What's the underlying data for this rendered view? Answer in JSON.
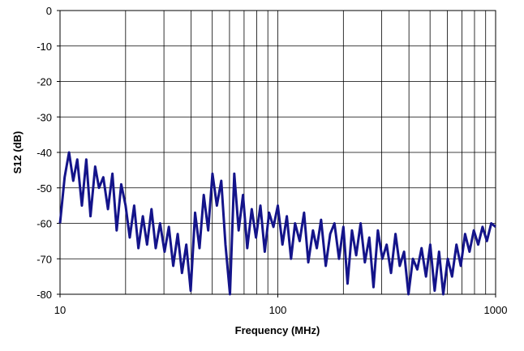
{
  "chart_data": {
    "type": "line",
    "x_label": "Frequency (MHz)",
    "y_label": "S12 (dB)",
    "log_x": true,
    "grid": true,
    "color": "#14148a",
    "xlim": [
      10,
      1000
    ],
    "xticks": [
      10,
      100,
      1000
    ],
    "ylim": [
      -80,
      0
    ],
    "yticks": [
      0,
      -10,
      -20,
      -30,
      -40,
      -50,
      -60,
      -70,
      -80
    ],
    "x": [
      10,
      10.5,
      11,
      11.5,
      12,
      12.6,
      13.2,
      13.8,
      14.5,
      15.1,
      15.8,
      16.6,
      17.4,
      18.2,
      19.1,
      20,
      20.9,
      21.9,
      22.9,
      24,
      25.1,
      26.3,
      27.5,
      28.8,
      30.2,
      31.6,
      33.1,
      34.7,
      36.3,
      38,
      39.8,
      41.7,
      43.7,
      45.7,
      47.9,
      50.1,
      52.5,
      55,
      57.5,
      60.3,
      63.1,
      66.1,
      69.2,
      72.4,
      75.9,
      79.4,
      83.2,
      87.1,
      91.2,
      95.5,
      100,
      105,
      110,
      115,
      120,
      126,
      132,
      138,
      145,
      151,
      158,
      166,
      174,
      182,
      191,
      200,
      209,
      219,
      229,
      240,
      251,
      263,
      275,
      288,
      302,
      316,
      331,
      347,
      363,
      380,
      398,
      417,
      437,
      457,
      479,
      501,
      525,
      550,
      575,
      603,
      631,
      661,
      692,
      724,
      759,
      794,
      832,
      871,
      912,
      955,
      1000
    ],
    "values": [
      -60,
      -47,
      -40,
      -48,
      -42,
      -55,
      -42,
      -58,
      -44,
      -50,
      -47,
      -56,
      -46,
      -62,
      -49,
      -55,
      -64,
      -55,
      -67,
      -58,
      -66,
      -56,
      -67,
      -60,
      -68,
      -61,
      -72,
      -63,
      -74,
      -66,
      -79,
      -57,
      -67,
      -52,
      -62,
      -46,
      -55,
      -48,
      -66,
      -80,
      -46,
      -62,
      -52,
      -67,
      -56,
      -64,
      -55,
      -68,
      -57,
      -61,
      -55,
      -66,
      -58,
      -70,
      -60,
      -65,
      -57,
      -71,
      -62,
      -67,
      -59,
      -72,
      -63,
      -60,
      -70,
      -61,
      -77,
      -62,
      -69,
      -60,
      -71,
      -64,
      -78,
      -62,
      -70,
      -66,
      -74,
      -63,
      -72,
      -68,
      -80,
      -70,
      -73,
      -67,
      -75,
      -66,
      -79,
      -68,
      -80,
      -70,
      -75,
      -66,
      -72,
      -63,
      -68,
      -62,
      -66,
      -61,
      -65,
      -60,
      -61
    ]
  }
}
